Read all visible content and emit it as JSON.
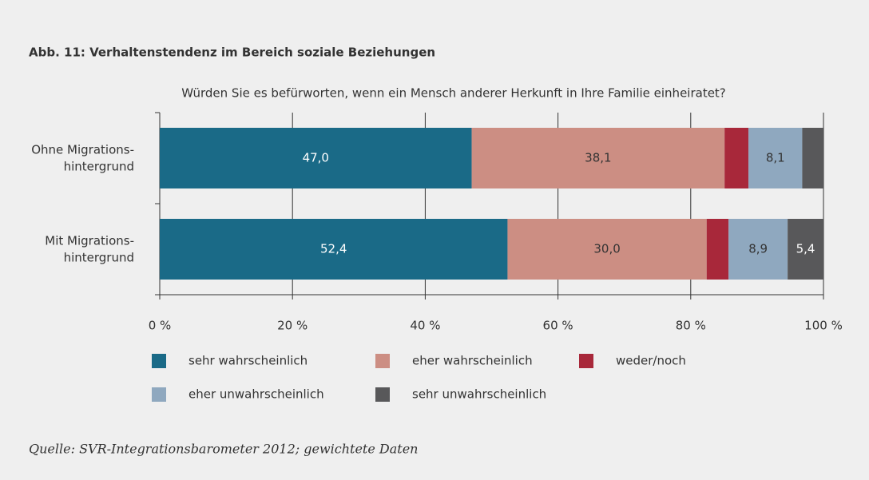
{
  "chart_data": {
    "type": "stacked_barh",
    "title": "Abb. 11: Verhaltenstendenz im Bereich soziale Beziehungen",
    "subtitle": "Würden Sie es befürworten, wenn ein Mensch anderer Herkunft in Ihre Familie einheiratet?",
    "source": "Quelle: SVR-Integrationsbarometer 2012; gewichtete Daten",
    "categories": [
      "Ohne Migrations-\nhintergrund",
      "Mit Migrations-\nhintergrund"
    ],
    "series": [
      {
        "name": "sehr wahrscheinlich",
        "color": "#1a6a87",
        "label_color": "#ffffff",
        "values": [
          47.0,
          52.4
        ],
        "value_labels": [
          "47,0",
          "52,4"
        ]
      },
      {
        "name": "eher wahrscheinlich",
        "color": "#cc8e83",
        "label_color": "#333333",
        "values": [
          38.1,
          30.0
        ],
        "value_labels": [
          "38,1",
          "30,0"
        ]
      },
      {
        "name": "weder/noch",
        "color": "#a8283a",
        "label_color": "#ffffff",
        "values": [
          3.6,
          3.3
        ],
        "value_labels": [
          null,
          null
        ]
      },
      {
        "name": "eher unwahrscheinlich",
        "color": "#8fa8bf",
        "label_color": "#333333",
        "values": [
          8.1,
          8.9
        ],
        "value_labels": [
          "8,1",
          "8,9"
        ]
      },
      {
        "name": "sehr unwahrscheinlich",
        "color": "#58585a",
        "label_color": "#ffffff",
        "values": [
          3.2,
          5.4
        ],
        "value_labels": [
          null,
          "5,4"
        ]
      }
    ],
    "xlim": [
      0,
      100
    ],
    "xticks": [
      {
        "value": 0,
        "label": "0 %"
      },
      {
        "value": 20,
        "label": "20 %"
      },
      {
        "value": 40,
        "label": "40 %"
      },
      {
        "value": 60,
        "label": "60 %"
      },
      {
        "value": 80,
        "label": "80 %"
      },
      {
        "value": 100,
        "label": "100 %"
      }
    ],
    "grid": true
  }
}
